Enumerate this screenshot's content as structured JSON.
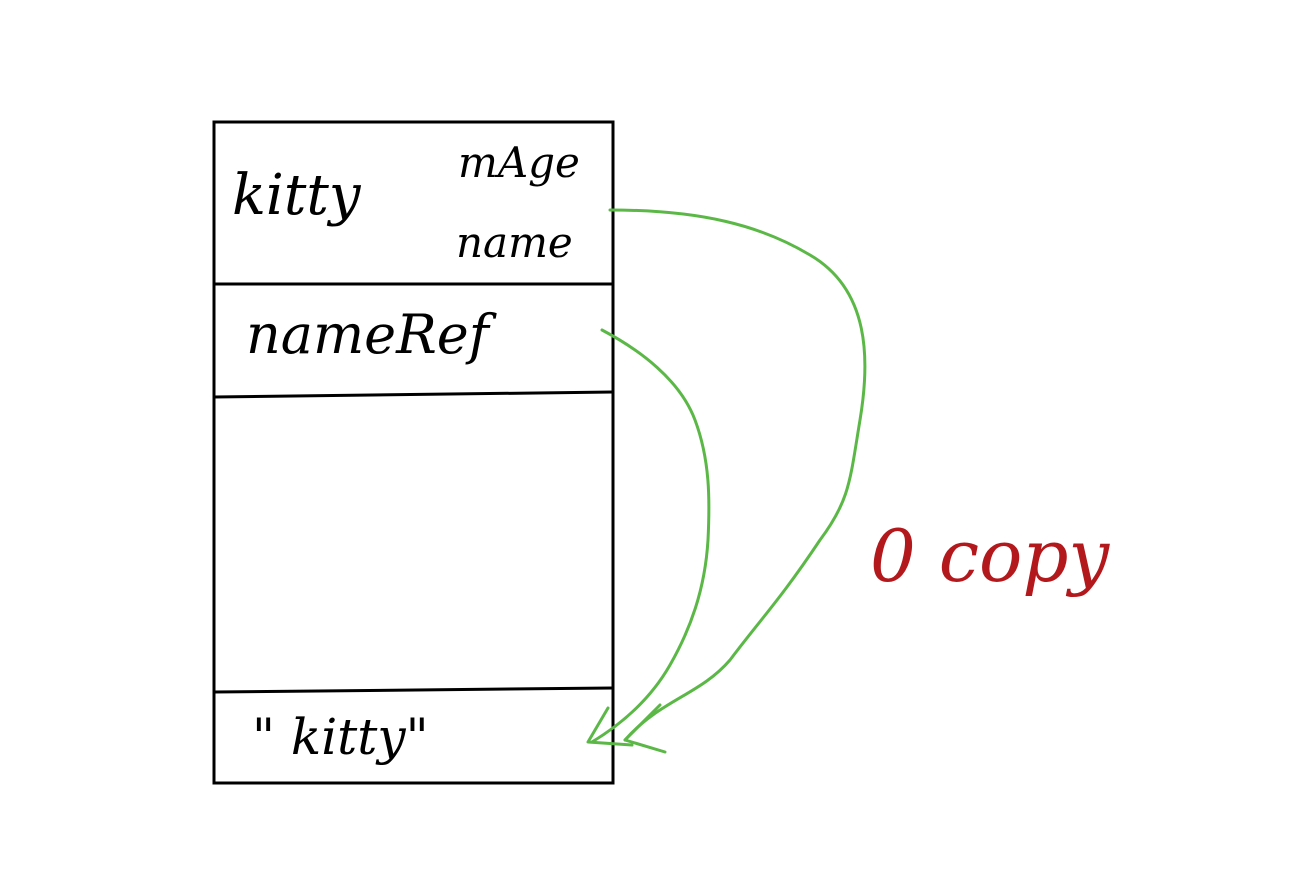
{
  "diagram": {
    "labels": {
      "kitty_variable": "kitty",
      "member_age": "mAge",
      "member_name": "name",
      "name_ref": "nameRef",
      "kitty_string": "\" kitty\"",
      "annotation": "0 copy"
    },
    "colors": {
      "outline": "#000000",
      "arrow": "#5bb847",
      "annotation": "#b3191c",
      "background": "#ffffff"
    }
  }
}
